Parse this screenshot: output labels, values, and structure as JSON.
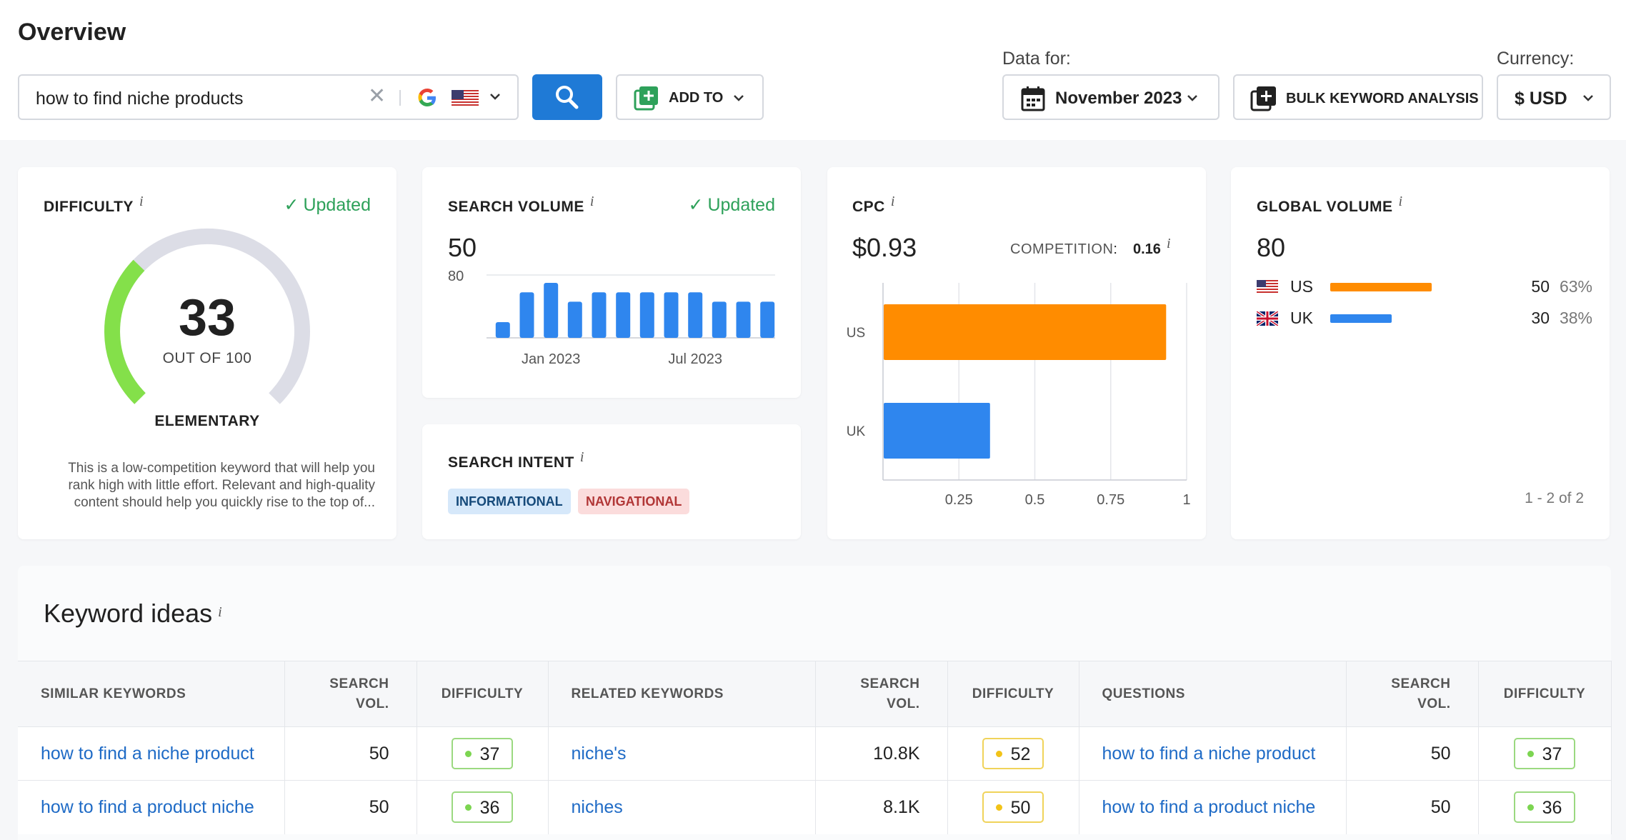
{
  "header": {
    "title": "Overview",
    "search_query": "how to find niche products",
    "add_to_label": "ADD TO",
    "data_for_label": "Data for:",
    "date_label": "November 2023",
    "bulk_label": "BULK KEYWORD ANALYSIS",
    "currency_label": "Currency:",
    "currency_value": "$ USD"
  },
  "difficulty": {
    "title": "DIFFICULTY",
    "info": "i",
    "updated": "Updated",
    "value": "33",
    "max_label": "OUT OF 100",
    "level": "ELEMENTARY",
    "description": "This is a low-competition keyword that will help you rank high with little effort. Relevant and high-quality content should help you quickly rise to the top of...",
    "colors": {
      "fill": "#84e04a",
      "track": "#dcdde6"
    }
  },
  "search_volume": {
    "title": "SEARCH VOLUME",
    "info": "i",
    "updated": "Updated",
    "value": "50",
    "chart_data": {
      "type": "bar",
      "y_tick": "80",
      "ylim": [
        0,
        80
      ],
      "x_labels": [
        "Jan 2023",
        "Jul 2023"
      ],
      "values": [
        20,
        58,
        70,
        46,
        58,
        58,
        58,
        58,
        58,
        46,
        46,
        46
      ],
      "color": "#2f86ee"
    }
  },
  "search_intent": {
    "title": "SEARCH INTENT",
    "info": "i",
    "tags": [
      "INFORMATIONAL",
      "NAVIGATIONAL"
    ]
  },
  "cpc": {
    "title": "CPC",
    "info": "i",
    "value": "$0.93",
    "competition_label": "COMPETITION",
    "competition_colon": ":",
    "competition_value": "0.16",
    "chart_data": {
      "type": "bar",
      "orientation": "horizontal",
      "categories": [
        "US",
        "UK"
      ],
      "values": [
        0.93,
        0.35
      ],
      "colors": [
        "#ff8c00",
        "#2f86ee"
      ],
      "ticks": [
        "0.25",
        "0.5",
        "0.75",
        "1"
      ],
      "xlim": [
        0,
        1
      ]
    }
  },
  "global_volume": {
    "title": "GLOBAL VOLUME",
    "info": "i",
    "value": "80",
    "rows": [
      {
        "country": "US",
        "volume": "50",
        "share": "63%",
        "fraction": 0.63,
        "color": "#ff8c00"
      },
      {
        "country": "UK",
        "volume": "30",
        "share": "38%",
        "fraction": 0.38,
        "color": "#2f86ee"
      }
    ],
    "pager": "1 - 2 of 2"
  },
  "keyword_ideas": {
    "title": "Keyword ideas",
    "info": "i",
    "headers": {
      "similar": "SIMILAR KEYWORDS",
      "related": "RELATED KEYWORDS",
      "questions": "QUESTIONS",
      "search_vol_1": "SEARCH",
      "search_vol_2": "VOL.",
      "difficulty": "DIFFICULTY"
    },
    "rows": [
      {
        "similar": {
          "keyword": "how to find a niche product",
          "volume": "50",
          "difficulty": "37",
          "level": "green"
        },
        "related": {
          "keyword": "niche's",
          "volume": "10.8K",
          "difficulty": "52",
          "level": "yellow"
        },
        "questions": {
          "keyword": "how to find a niche product",
          "volume": "50",
          "difficulty": "37",
          "level": "green"
        }
      },
      {
        "similar": {
          "keyword": "how to find a product niche",
          "volume": "50",
          "difficulty": "36",
          "level": "green"
        },
        "related": {
          "keyword": "niches",
          "volume": "8.1K",
          "difficulty": "50",
          "level": "yellow"
        },
        "questions": {
          "keyword": "how to find a product niche",
          "volume": "50",
          "difficulty": "36",
          "level": "green"
        }
      }
    ]
  }
}
